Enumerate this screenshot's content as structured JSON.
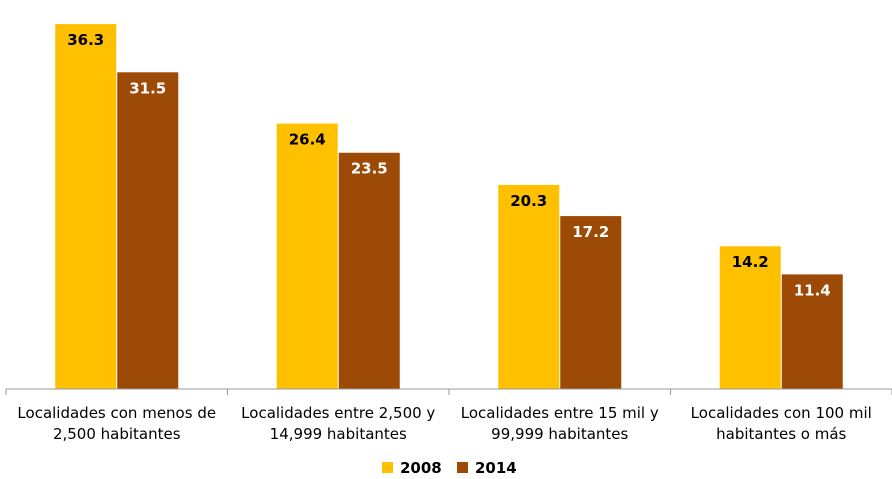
{
  "chart_data": {
    "type": "bar",
    "title": "",
    "xlabel": "",
    "ylabel": "",
    "ylim": [
      0,
      37.5
    ],
    "categories": [
      [
        "Localidades con menos de",
        "2,500 habitantes"
      ],
      [
        "Localidades entre 2,500 y",
        "14,999 habitantes"
      ],
      [
        "Localidades entre 15 mil y",
        "99,999 habitantes"
      ],
      [
        "Localidades con 100 mil",
        "habitantes o más"
      ]
    ],
    "series": [
      {
        "name": "2008",
        "color": "#FFC000",
        "label_color": "#000000",
        "values": [
          36.3,
          26.4,
          20.3,
          14.2
        ]
      },
      {
        "name": "2014",
        "color": "#9C4A06",
        "label_color": "#FFFFFF",
        "values": [
          31.5,
          23.5,
          17.2,
          11.4
        ]
      }
    ],
    "legend_position": "bottom",
    "grid": false,
    "data_labels": true
  }
}
